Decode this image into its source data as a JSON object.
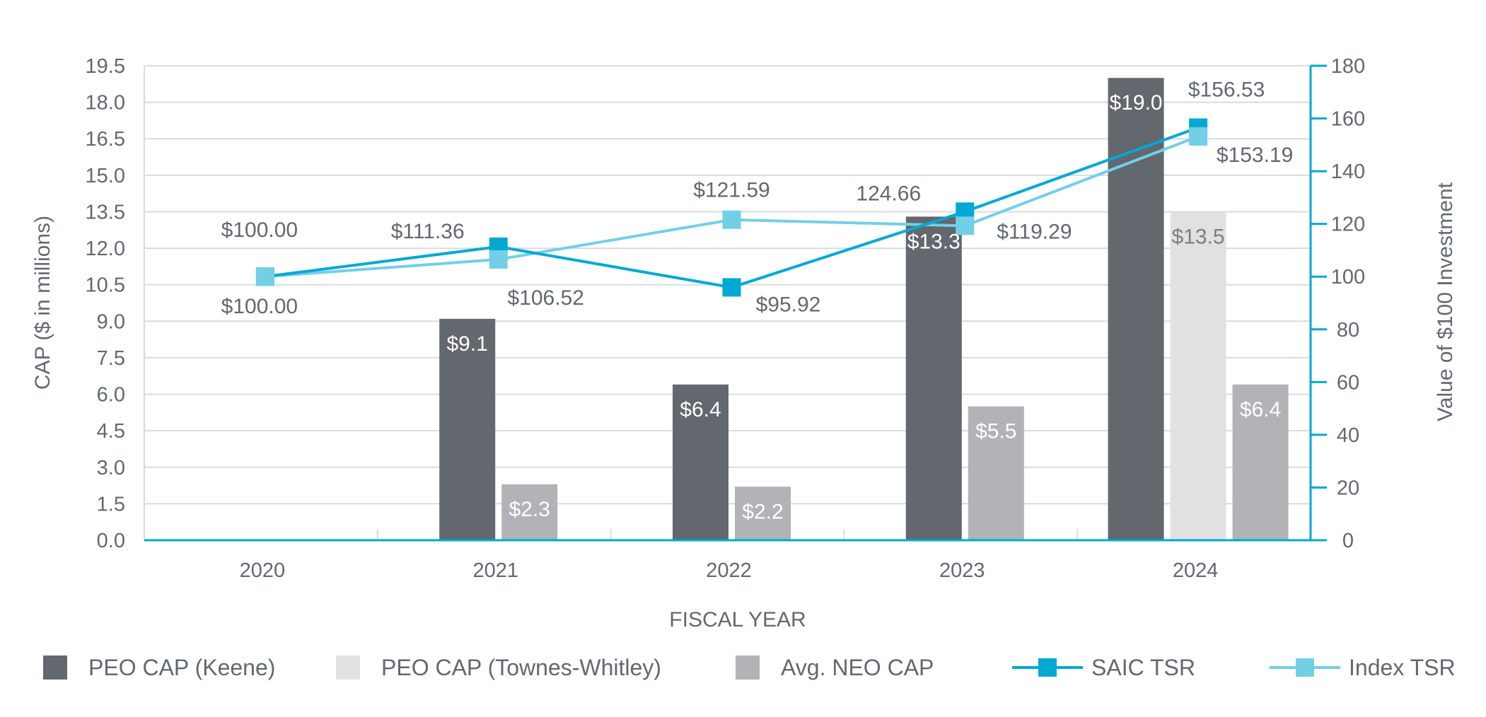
{
  "chart_data": {
    "type": "bar",
    "title": "",
    "xlabel": "FISCAL YEAR",
    "ylabel": "CAP ($ in millions)",
    "y2label": "Value of $100 Investment",
    "categories": [
      "2020",
      "2021",
      "2022",
      "2023",
      "2024"
    ],
    "ylim": [
      0,
      19.5
    ],
    "yticks": [
      "0.0",
      "1.5",
      "3.0",
      "4.5",
      "6.0",
      "7.5",
      "9.0",
      "10.5",
      "12.0",
      "13.5",
      "15.0",
      "16.5",
      "18.0",
      "19.5"
    ],
    "y2lim": [
      0,
      180
    ],
    "y2ticks": [
      "0",
      "20",
      "40",
      "60",
      "80",
      "100",
      "120",
      "140",
      "160",
      "180"
    ],
    "grid": true,
    "legend_position": "bottom",
    "bar_series": [
      {
        "name": "PEO CAP (Keene)",
        "color": "#63676E",
        "label_color": "#FFFFFF",
        "values": [
          null,
          9.1,
          6.4,
          13.3,
          19.0
        ],
        "labels": [
          null,
          "$9.1",
          "$6.4",
          "$13.3",
          "$19.0"
        ]
      },
      {
        "name": "PEO CAP (Townes-Whitley)",
        "color": "#E2E1E2",
        "label_color": "#7A7E84",
        "values": [
          null,
          null,
          null,
          null,
          13.5
        ],
        "labels": [
          null,
          null,
          null,
          null,
          "$13.5"
        ]
      },
      {
        "name": "Avg. NEO CAP",
        "color": "#B1B3B6",
        "label_color": "#FFFFFF",
        "values": [
          null,
          2.3,
          2.2,
          5.5,
          6.4
        ],
        "labels": [
          null,
          "$2.3",
          "$2.2",
          "$5.5",
          "$6.4"
        ]
      }
    ],
    "line_series": [
      {
        "name": "SAIC TSR",
        "color": "#00A9D4",
        "axis": "right",
        "values": [
          100.0,
          111.36,
          95.92,
          124.66,
          156.53
        ],
        "labels": [
          "$100.00",
          "$111.36",
          "$95.92",
          "124.66",
          "$156.53"
        ],
        "label_side": [
          "above",
          "above",
          "below",
          "above",
          "above"
        ]
      },
      {
        "name": "Index TSR",
        "color": "#73CFE6",
        "axis": "right",
        "values": [
          100.0,
          106.52,
          121.59,
          119.29,
          153.19
        ],
        "labels": [
          "$100.00",
          "$106.52",
          "$121.59",
          "$119.29",
          "$153.19"
        ],
        "label_side": [
          "below",
          "below",
          "above",
          "right",
          "below"
        ]
      }
    ]
  },
  "legend": [
    {
      "name": "PEO CAP (Keene)",
      "kind": "bar",
      "color": "#63676E"
    },
    {
      "name": "PEO CAP (Townes-Whitley)",
      "kind": "bar",
      "color": "#E2E1E2"
    },
    {
      "name": "Avg. NEO CAP",
      "kind": "bar",
      "color": "#B1B3B6"
    },
    {
      "name": "SAIC TSR",
      "kind": "line",
      "color": "#00A9D4"
    },
    {
      "name": "Index TSR",
      "kind": "line",
      "color": "#73CFE6"
    }
  ],
  "colors": {
    "text": "#626870",
    "grid": "#DADBDD",
    "right_axis": "#00A9D4"
  }
}
